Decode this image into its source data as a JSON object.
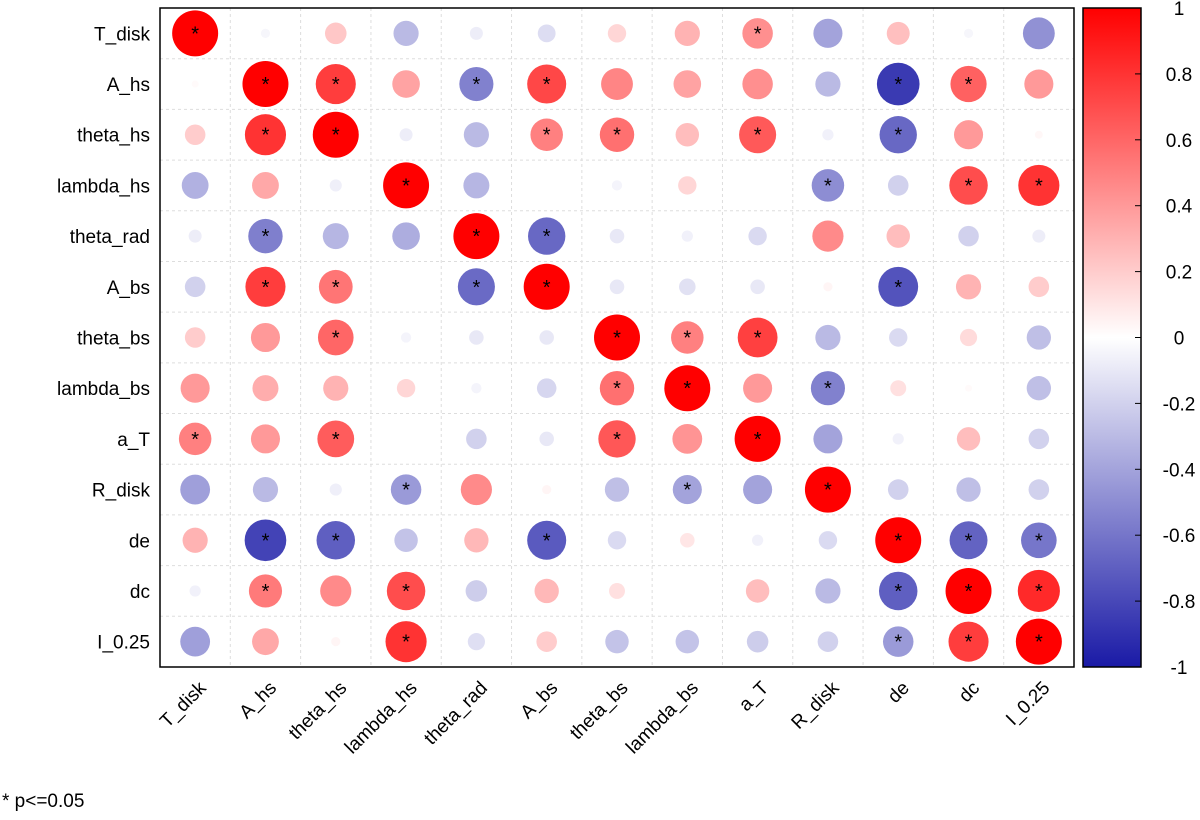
{
  "chart_data": {
    "type": "heatmap",
    "style": "circle-correlation-matrix",
    "variables": [
      "T_disk",
      "A_hs",
      "theta_hs",
      "lambda_hs",
      "theta_rad",
      "A_bs",
      "theta_bs",
      "lambda_bs",
      "a_T",
      "R_disk",
      "de",
      "dc",
      "I_0.25"
    ],
    "matrix": [
      [
        1.0,
        -0.04,
        0.22,
        -0.3,
        -0.08,
        -0.15,
        0.16,
        0.3,
        0.44,
        -0.4,
        0.25,
        -0.04,
        -0.48
      ],
      [
        0.02,
        1.0,
        0.76,
        0.36,
        -0.55,
        0.72,
        0.48,
        0.36,
        0.44,
        -0.3,
        -0.86,
        0.62,
        0.4
      ],
      [
        0.2,
        0.8,
        1.0,
        -0.08,
        -0.3,
        0.5,
        0.56,
        0.26,
        0.65,
        -0.06,
        -0.66,
        0.4,
        0.03
      ],
      [
        -0.34,
        0.34,
        -0.07,
        1.0,
        -0.32,
        0.0,
        -0.05,
        0.16,
        0.0,
        -0.5,
        -0.2,
        0.7,
        0.8
      ],
      [
        -0.08,
        -0.56,
        -0.32,
        -0.36,
        1.0,
        -0.66,
        -0.1,
        -0.06,
        -0.16,
        0.46,
        0.26,
        -0.2,
        -0.08
      ],
      [
        -0.2,
        0.76,
        0.54,
        0.0,
        -0.65,
        1.0,
        -0.1,
        -0.13,
        -0.1,
        0.04,
        -0.75,
        0.3,
        0.2
      ],
      [
        0.2,
        0.4,
        0.6,
        -0.05,
        -0.1,
        -0.1,
        1.0,
        0.5,
        0.75,
        -0.3,
        -0.16,
        0.14,
        -0.28
      ],
      [
        0.4,
        0.32,
        0.3,
        0.16,
        -0.05,
        -0.18,
        0.56,
        1.0,
        0.4,
        -0.55,
        0.12,
        0.02,
        -0.28
      ],
      [
        0.5,
        0.4,
        0.64,
        0.0,
        -0.2,
        -0.1,
        0.66,
        0.42,
        1.0,
        -0.4,
        -0.06,
        0.26,
        -0.2
      ],
      [
        -0.42,
        -0.3,
        -0.07,
        -0.44,
        0.46,
        0.04,
        -0.28,
        -0.4,
        -0.4,
        1.0,
        -0.2,
        -0.28,
        -0.2
      ],
      [
        0.3,
        -0.82,
        -0.7,
        -0.26,
        0.28,
        -0.72,
        -0.16,
        0.1,
        -0.06,
        -0.16,
        1.0,
        -0.68,
        -0.6
      ],
      [
        -0.06,
        0.52,
        0.46,
        0.7,
        -0.22,
        0.28,
        0.12,
        0.0,
        0.26,
        -0.3,
        -0.7,
        1.0,
        0.84
      ],
      [
        -0.42,
        0.34,
        0.04,
        0.8,
        -0.14,
        0.2,
        -0.26,
        -0.26,
        -0.22,
        -0.2,
        -0.44,
        0.76,
        1.0
      ]
    ],
    "significant": [
      [
        1,
        0,
        0,
        0,
        0,
        0,
        0,
        0,
        1,
        0,
        0,
        0,
        0
      ],
      [
        0,
        1,
        1,
        0,
        1,
        1,
        0,
        0,
        0,
        0,
        1,
        1,
        0
      ],
      [
        0,
        1,
        1,
        0,
        0,
        1,
        1,
        0,
        1,
        0,
        1,
        0,
        0
      ],
      [
        0,
        0,
        0,
        1,
        0,
        0,
        0,
        0,
        0,
        1,
        0,
        1,
        1
      ],
      [
        0,
        1,
        0,
        0,
        1,
        1,
        0,
        0,
        0,
        0,
        0,
        0,
        0
      ],
      [
        0,
        1,
        1,
        0,
        1,
        1,
        0,
        0,
        0,
        0,
        1,
        0,
        0
      ],
      [
        0,
        0,
        1,
        0,
        0,
        0,
        1,
        1,
        1,
        0,
        0,
        0,
        0
      ],
      [
        0,
        0,
        0,
        0,
        0,
        0,
        1,
        1,
        0,
        1,
        0,
        0,
        0
      ],
      [
        1,
        0,
        1,
        0,
        0,
        0,
        1,
        0,
        1,
        0,
        0,
        0,
        0
      ],
      [
        0,
        0,
        0,
        1,
        0,
        0,
        0,
        1,
        0,
        1,
        0,
        0,
        0
      ],
      [
        0,
        1,
        1,
        0,
        0,
        1,
        0,
        0,
        0,
        0,
        1,
        1,
        1
      ],
      [
        0,
        1,
        0,
        1,
        0,
        0,
        0,
        0,
        0,
        0,
        1,
        1,
        1
      ],
      [
        0,
        0,
        0,
        1,
        0,
        0,
        0,
        0,
        0,
        0,
        1,
        1,
        1
      ]
    ],
    "significance_marker": "*",
    "colorbar": {
      "range": [
        -1,
        1
      ],
      "ticks": [
        "1",
        "0.8",
        "0.6",
        "0.4",
        "0.2",
        "0",
        "-0.2",
        "-0.4",
        "-0.6",
        "-0.8",
        "-1"
      ],
      "colors": {
        "negative": "#1a1aa6",
        "zero": "#ffffff",
        "positive": "#ff0000"
      }
    },
    "grid": true,
    "legend": "right",
    "footnote": "* p<=0.05"
  }
}
